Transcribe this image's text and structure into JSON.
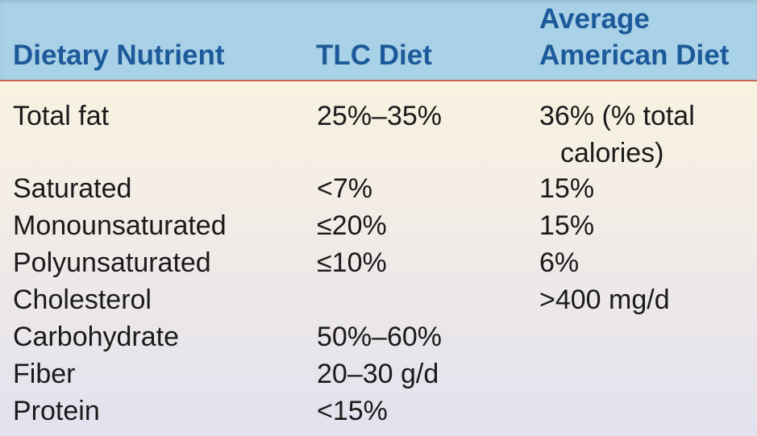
{
  "table": {
    "headers": {
      "nutrient": "Dietary Nutrient",
      "tlc": "TLC Diet",
      "american_line1": "Average",
      "american_line2": "American Diet"
    },
    "rows": [
      {
        "nutrient": "Total fat",
        "tlc": "25%–35%",
        "american": "36% (% total",
        "american_cont": "calories)"
      },
      {
        "nutrient": "Saturated",
        "tlc": "<7%",
        "american": "15%"
      },
      {
        "nutrient": "Monounsaturated",
        "tlc": "≤20%",
        "american": "15%"
      },
      {
        "nutrient": "Polyunsaturated",
        "tlc": "≤10%",
        "american": "6%"
      },
      {
        "nutrient": "Cholesterol",
        "tlc": "",
        "american": ">400 mg/d"
      },
      {
        "nutrient": "Carbohydrate",
        "tlc": "50%–60%",
        "american": ""
      },
      {
        "nutrient": "Fiber",
        "tlc": "20–30 g/d",
        "american": ""
      },
      {
        "nutrient": "Protein",
        "tlc": "<15%",
        "american": ""
      }
    ]
  },
  "colors": {
    "header_bg": "#a9d1e7",
    "header_text": "#1d5a9a",
    "rule": "#c5655c",
    "body_text": "#1a1a1a"
  }
}
